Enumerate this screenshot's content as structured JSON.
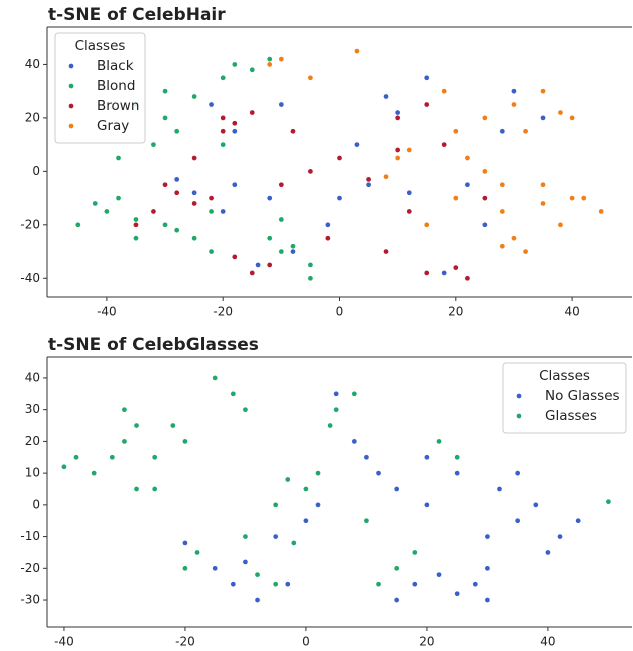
{
  "chart_data": [
    {
      "type": "scatter",
      "title": "t-SNE of CelebHair",
      "legend_title": "Classes",
      "legend": "upper left",
      "xlim": [
        -50.3,
        50.3
      ],
      "ylim": [
        -47,
        54
      ],
      "xticks": [
        -40,
        -20,
        0,
        20,
        40
      ],
      "yticks": [
        -40,
        -20,
        0,
        20,
        40
      ],
      "series": [
        {
          "name": "Black",
          "color": "#3b5fc9",
          "x": [
            -20,
            -18,
            -22,
            -15,
            -25,
            -18,
            -12,
            -20,
            -8,
            -5,
            0,
            5,
            12,
            15,
            18,
            20,
            22,
            25,
            -10,
            -28,
            10,
            18,
            30,
            35,
            28,
            22,
            -2,
            3,
            -14,
            8
          ],
          "y": [
            20,
            15,
            25,
            22,
            -8,
            -5,
            -10,
            -15,
            -30,
            -35,
            -10,
            -5,
            -8,
            35,
            30,
            -10,
            -5,
            -20,
            25,
            -3,
            22,
            -38,
            30,
            20,
            15,
            5,
            -20,
            10,
            -35,
            28
          ]
        },
        {
          "name": "Blond",
          "color": "#1fa869",
          "x": [
            -30,
            -35,
            -28,
            -32,
            -25,
            -40,
            -42,
            -38,
            -35,
            -30,
            -15,
            -18,
            -12,
            -20,
            -10,
            -8,
            -12,
            -25,
            -22,
            -28,
            -5,
            -15,
            -45,
            -38,
            -20,
            -10,
            -30,
            -35,
            -22,
            -5
          ],
          "y": [
            20,
            25,
            15,
            10,
            28,
            -15,
            -12,
            -10,
            -18,
            -20,
            38,
            40,
            42,
            35,
            -30,
            -28,
            -25,
            -25,
            -30,
            -22,
            -40,
            -38,
            -20,
            5,
            10,
            -18,
            30,
            -25,
            -15,
            -35
          ]
        },
        {
          "name": "Brown",
          "color": "#b31b2f",
          "x": [
            -28,
            -30,
            -25,
            -22,
            -20,
            -18,
            -15,
            -20,
            -12,
            -15,
            -18,
            -10,
            -5,
            0,
            5,
            10,
            15,
            20,
            22,
            18,
            10,
            12,
            -25,
            -32,
            -2,
            25,
            8,
            -8,
            15,
            -35
          ],
          "y": [
            -8,
            -5,
            -12,
            -10,
            20,
            18,
            22,
            15,
            -35,
            -38,
            -32,
            -5,
            0,
            5,
            -3,
            20,
            -38,
            -36,
            -40,
            10,
            8,
            -15,
            5,
            -15,
            -25,
            -10,
            -30,
            15,
            25,
            -20
          ]
        },
        {
          "name": "Gray",
          "color": "#f07f17",
          "x": [
            30,
            35,
            25,
            38,
            32,
            28,
            35,
            40,
            38,
            30,
            25,
            28,
            20,
            22,
            42,
            10,
            12,
            15,
            -10,
            -5,
            -12,
            3,
            35,
            32,
            28,
            40,
            20,
            45,
            8,
            18
          ],
          "y": [
            25,
            30,
            20,
            22,
            15,
            -15,
            -12,
            -10,
            -20,
            -25,
            0,
            -5,
            -10,
            5,
            -10,
            5,
            8,
            -20,
            42,
            35,
            40,
            45,
            -5,
            -30,
            -28,
            20,
            15,
            -15,
            -2,
            30
          ]
        }
      ]
    },
    {
      "type": "scatter",
      "title": "t-SNE of CelebGlasses",
      "legend_title": "Classes",
      "legend": "upper right",
      "xlim": [
        -42.8,
        53.9
      ],
      "ylim": [
        -38.5,
        46.6
      ],
      "xticks": [
        -40,
        -20,
        0,
        20,
        40
      ],
      "yticks": [
        -30,
        -20,
        -10,
        0,
        10,
        20,
        30,
        40
      ],
      "series": [
        {
          "name": "No Glasses",
          "color": "#3b5fc9",
          "x": [
            35,
            38,
            30,
            32,
            40,
            28,
            25,
            22,
            30,
            18,
            15,
            20,
            25,
            10,
            8,
            12,
            15,
            -15,
            -18,
            -12,
            -10,
            -5,
            -8,
            -20,
            0,
            5,
            2,
            35,
            42,
            45,
            30,
            20,
            -3,
            10,
            5
          ],
          "y": [
            -5,
            0,
            -10,
            5,
            -15,
            -25,
            -28,
            -22,
            -30,
            -25,
            -30,
            15,
            10,
            15,
            20,
            10,
            5,
            -20,
            -15,
            -25,
            -18,
            -10,
            -30,
            -12,
            -5,
            35,
            0,
            10,
            -10,
            -5,
            -20,
            0,
            -25,
            -5,
            30
          ]
        },
        {
          "name": "Glasses",
          "color": "#1fa869",
          "x": [
            -30,
            -28,
            -32,
            -25,
            -35,
            -38,
            -22,
            -20,
            -25,
            -12,
            -15,
            -10,
            -18,
            -20,
            -8,
            -5,
            0,
            2,
            -3,
            5,
            8,
            4,
            15,
            12,
            22,
            25,
            18,
            -28,
            -30,
            -40,
            -5,
            -10,
            50,
            10,
            -2
          ],
          "y": [
            20,
            25,
            15,
            5,
            10,
            15,
            25,
            20,
            15,
            35,
            40,
            -10,
            -15,
            -20,
            -22,
            0,
            5,
            10,
            8,
            30,
            35,
            25,
            -20,
            -25,
            20,
            15,
            -15,
            5,
            30,
            12,
            -25,
            30,
            1,
            -5,
            -12
          ]
        }
      ]
    }
  ]
}
